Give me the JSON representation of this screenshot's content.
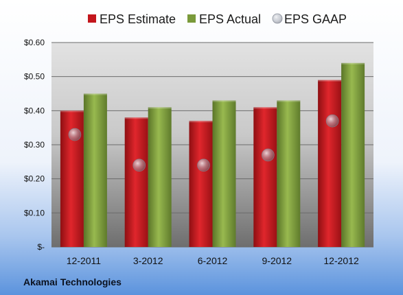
{
  "company": "Akamai Technologies",
  "colors": {
    "estimate": "#c3161c",
    "actual": "#7a9a3a",
    "gaap": "#b4b8c2",
    "background_top": "#ffffff",
    "background_bottom": "#5b93dd"
  },
  "chart_data": {
    "type": "bar",
    "categories": [
      "12-2011",
      "3-2012",
      "6-2012",
      "9-2012",
      "12-2012"
    ],
    "series": [
      {
        "name": "EPS Estimate",
        "values": [
          0.4,
          0.38,
          0.37,
          0.41,
          0.49
        ]
      },
      {
        "name": "EPS Actual",
        "values": [
          0.45,
          0.41,
          0.43,
          0.43,
          0.54
        ]
      },
      {
        "name": "EPS GAAP",
        "values": [
          0.33,
          0.24,
          0.24,
          0.27,
          0.37
        ]
      }
    ],
    "ylim": [
      0,
      0.6
    ],
    "yticks": [
      0,
      0.1,
      0.2,
      0.3,
      0.4,
      0.5,
      0.6
    ],
    "ytick_labels": [
      "$-",
      "$0.10",
      "$0.20",
      "$0.30",
      "$0.40",
      "$0.50",
      "$0.60"
    ],
    "grid": true,
    "legend_position": "top"
  }
}
